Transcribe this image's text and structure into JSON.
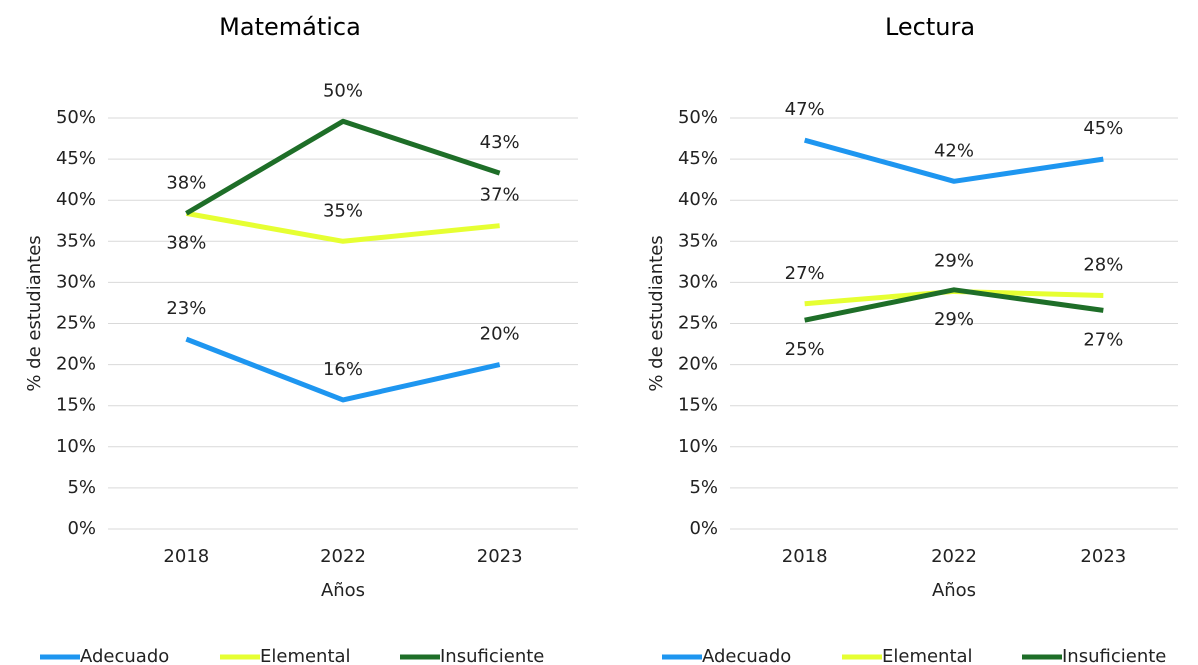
{
  "chart_data": [
    {
      "type": "line",
      "title": "Matemática",
      "xlabel": "Años",
      "ylabel": "% de estudiantes",
      "categories": [
        "2018",
        "2022",
        "2023"
      ],
      "ylim": [
        0,
        50
      ],
      "yticks": [
        {
          "value": 0,
          "label": "0%"
        },
        {
          "value": 5,
          "label": "5%"
        },
        {
          "value": 10,
          "label": "10%"
        },
        {
          "value": 15,
          "label": "15%"
        },
        {
          "value": 20,
          "label": "20%"
        },
        {
          "value": 25,
          "label": "25%"
        },
        {
          "value": 30,
          "label": "30%"
        },
        {
          "value": 35,
          "label": "35%"
        },
        {
          "value": 40,
          "label": "40%"
        },
        {
          "value": 45,
          "label": "45%"
        },
        {
          "value": 50,
          "label": "50%"
        }
      ],
      "grid": true,
      "legend": "bottom",
      "series": [
        {
          "name": "Adecuado",
          "color": "#1e96f0",
          "values": [
            23.1,
            15.7,
            20.0
          ],
          "value_labels": [
            "23%",
            "16%",
            "20%"
          ]
        },
        {
          "name": "Elemental",
          "color": "#e6ff32",
          "values": [
            38.4,
            35.0,
            36.9
          ],
          "value_labels": [
            "38%",
            "35%",
            "37%"
          ]
        },
        {
          "name": "Insuficiente",
          "color": "#1e6e28",
          "values": [
            38.4,
            49.6,
            43.3
          ],
          "value_labels": [
            "38%",
            "50%",
            "43%"
          ]
        }
      ]
    },
    {
      "type": "line",
      "title": "Lectura",
      "xlabel": "Años",
      "ylabel": "% de estudiantes",
      "categories": [
        "2018",
        "2022",
        "2023"
      ],
      "ylim": [
        0,
        50
      ],
      "yticks": [
        {
          "value": 0,
          "label": "0%"
        },
        {
          "value": 5,
          "label": "5%"
        },
        {
          "value": 10,
          "label": "10%"
        },
        {
          "value": 15,
          "label": "15%"
        },
        {
          "value": 20,
          "label": "20%"
        },
        {
          "value": 25,
          "label": "25%"
        },
        {
          "value": 30,
          "label": "30%"
        },
        {
          "value": 35,
          "label": "35%"
        },
        {
          "value": 40,
          "label": "40%"
        },
        {
          "value": 45,
          "label": "45%"
        },
        {
          "value": 50,
          "label": "50%"
        }
      ],
      "grid": true,
      "legend": "bottom",
      "series": [
        {
          "name": "Adecuado",
          "color": "#1e96f0",
          "values": [
            47.3,
            42.3,
            45.0
          ],
          "value_labels": [
            "47%",
            "42%",
            "45%"
          ]
        },
        {
          "name": "Elemental",
          "color": "#e6ff32",
          "values": [
            27.4,
            28.9,
            28.4
          ],
          "value_labels": [
            "27%",
            "29%",
            "28%"
          ]
        },
        {
          "name": "Insuficiente",
          "color": "#1e6e28",
          "values": [
            25.4,
            29.1,
            26.6
          ],
          "value_labels": [
            "25%",
            "29%",
            "27%"
          ]
        }
      ]
    }
  ]
}
